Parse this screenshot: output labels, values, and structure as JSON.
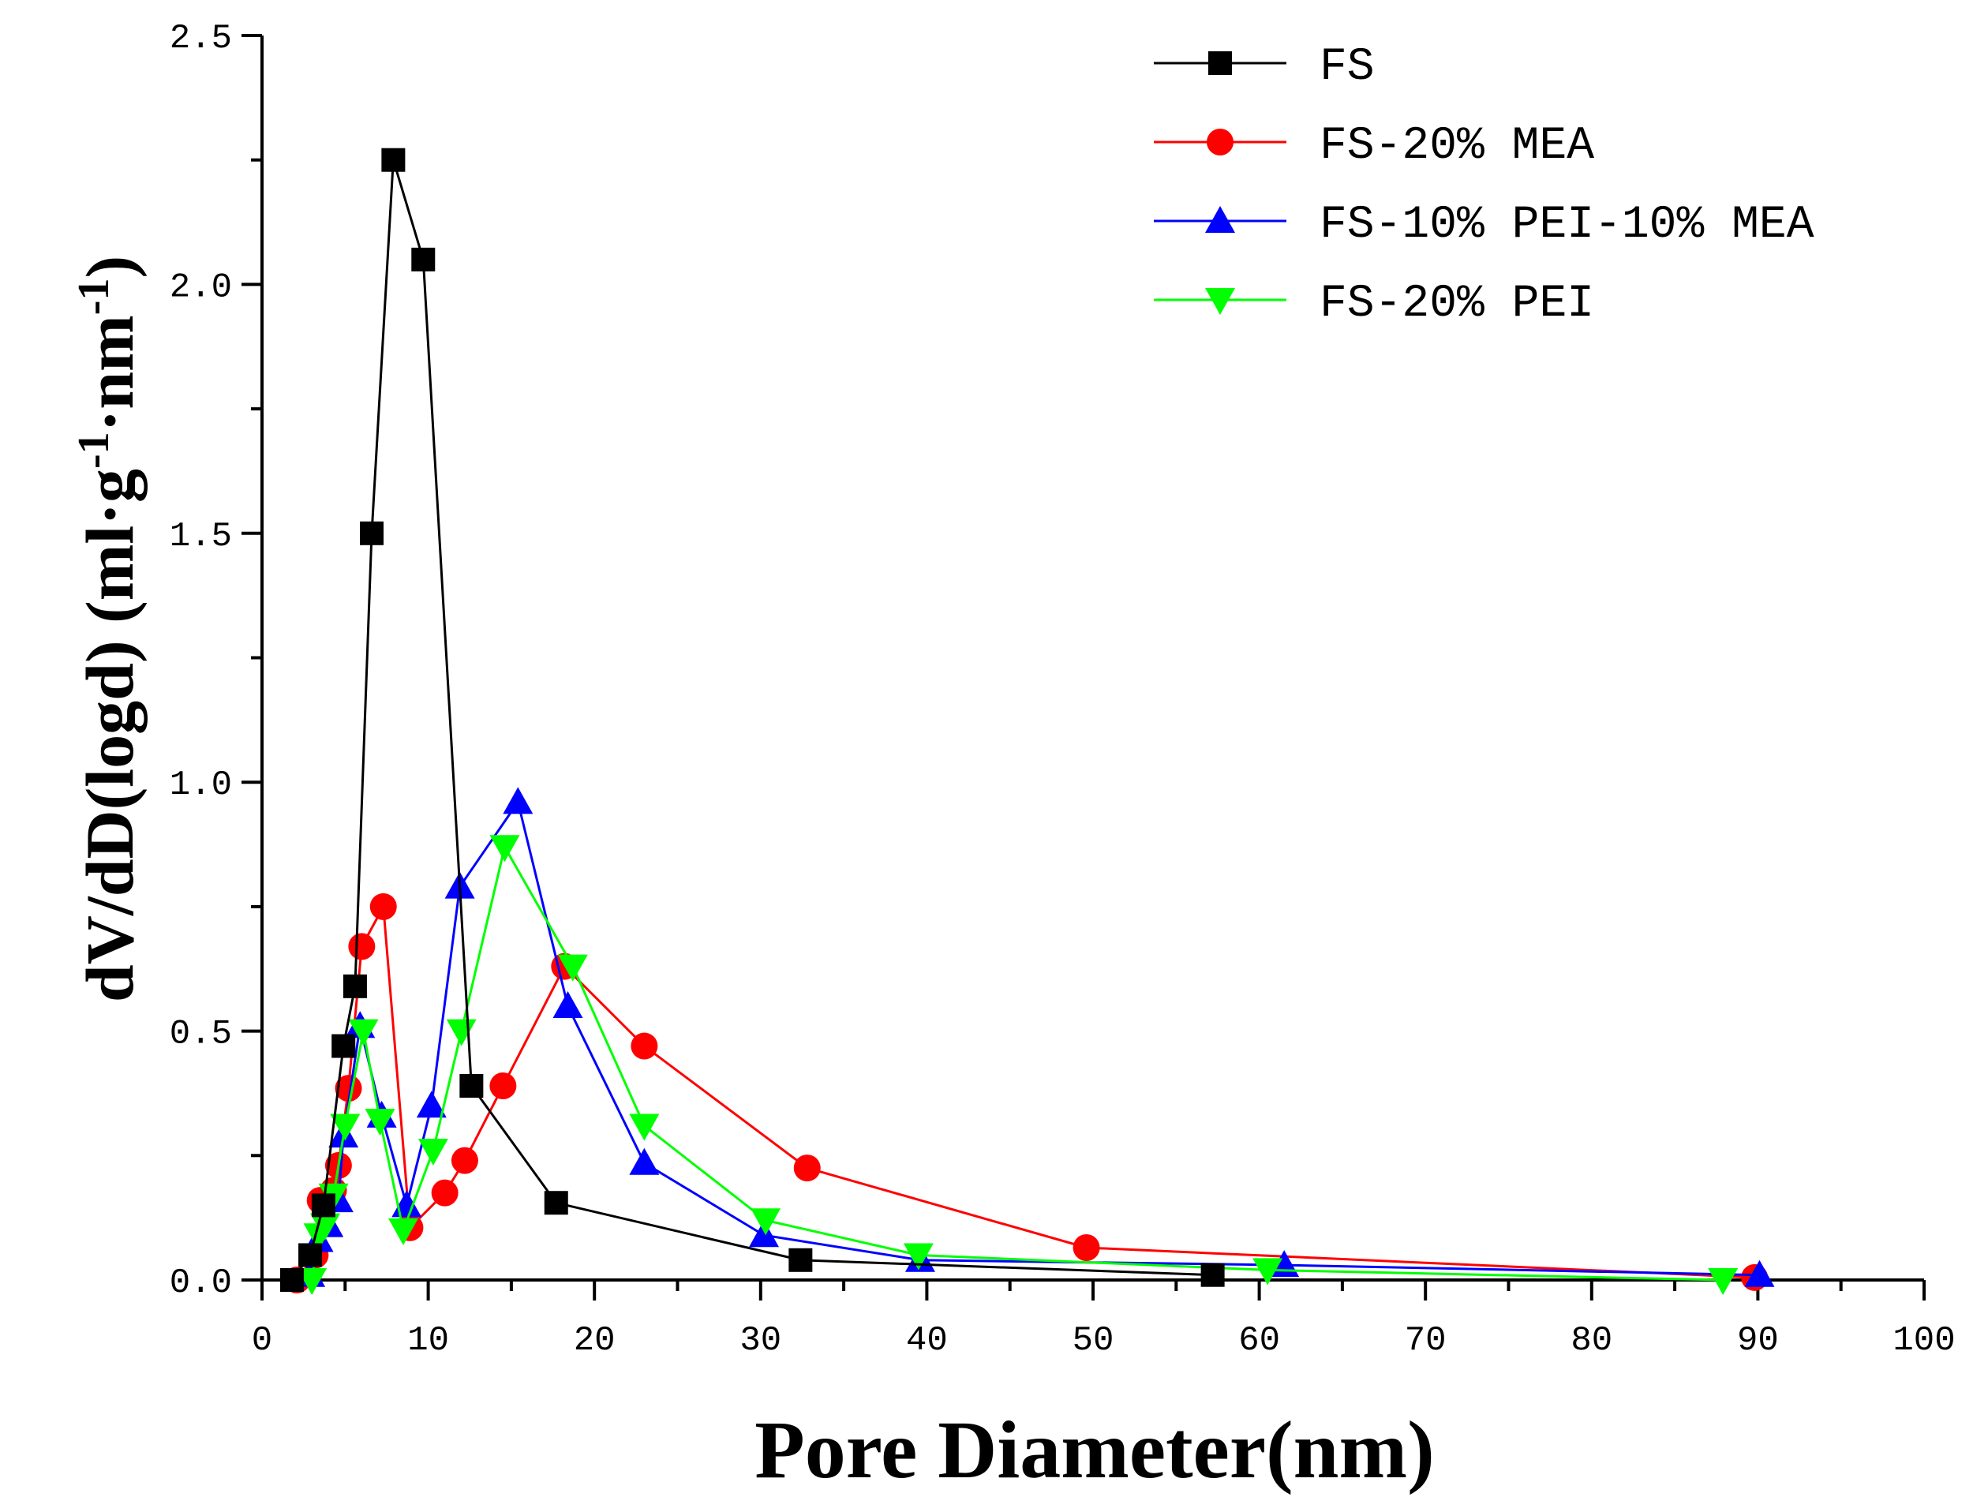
{
  "chart_data": {
    "type": "line",
    "xlabel": "Pore Diameter(nm)",
    "ylabel": "dV/dD(logd)  (ml·g-1·nm-1)",
    "ylabel_parts": {
      "main": "dV/dD(logd)  (ml·g",
      "sup1": "-1",
      "mid": "·nm",
      "sup2": "-1",
      "end": ")"
    },
    "xlim": [
      0,
      100
    ],
    "ylim": [
      0,
      2.5
    ],
    "xticks": [
      0,
      10,
      20,
      30,
      40,
      50,
      60,
      70,
      80,
      90,
      100
    ],
    "xtick_labels": [
      "0",
      "10",
      "20",
      "30",
      "40",
      "50",
      "60",
      "70",
      "80",
      "90",
      "100"
    ],
    "yticks": [
      0,
      0.5,
      1.0,
      1.5,
      2.0,
      2.5
    ],
    "ytick_labels": [
      "0.0",
      "0.5",
      "1.0",
      "1.5",
      "2.0",
      "2.5"
    ],
    "grid": false,
    "legend_position": "top-right",
    "series": [
      {
        "name": "FS",
        "color": "#000000",
        "marker": "square",
        "x": [
          1.8,
          2.9,
          3.7,
          4.9,
          5.6,
          6.6,
          7.9,
          9.7,
          12.6,
          17.7,
          32.4,
          57.2
        ],
        "y": [
          0.0,
          0.05,
          0.15,
          0.47,
          0.59,
          1.5,
          2.25,
          2.05,
          0.39,
          0.155,
          0.04,
          0.01
        ]
      },
      {
        "name": "FS-20% MEA",
        "color": "#ff0000",
        "marker": "circle",
        "x": [
          2.1,
          3.2,
          3.5,
          4.3,
          4.6,
          5.2,
          6.0,
          7.3,
          8.9,
          11.0,
          12.2,
          14.5,
          18.2,
          23.0,
          32.8,
          49.6,
          89.8
        ],
        "y": [
          0.0,
          0.05,
          0.16,
          0.18,
          0.23,
          0.385,
          0.67,
          0.75,
          0.105,
          0.175,
          0.24,
          0.39,
          0.63,
          0.47,
          0.225,
          0.065,
          0.005
        ]
      },
      {
        "name": "FS-10% PEI-10% MEA",
        "color": "#0000ff",
        "marker": "triangle-up",
        "x": [
          2.9,
          3.4,
          4.0,
          4.6,
          4.9,
          5.9,
          7.2,
          8.7,
          10.2,
          11.9,
          15.4,
          18.4,
          23.0,
          30.2,
          39.6,
          61.5,
          90.1
        ],
        "y": [
          0.01,
          0.08,
          0.11,
          0.16,
          0.29,
          0.51,
          0.33,
          0.15,
          0.35,
          0.79,
          0.96,
          0.55,
          0.235,
          0.09,
          0.04,
          0.03,
          0.01
        ]
      },
      {
        "name": "FS-20% PEI",
        "color": "#00ff00",
        "marker": "triangle-down",
        "x": [
          3.0,
          3.4,
          3.8,
          4.3,
          5.0,
          6.1,
          7.1,
          8.5,
          10.3,
          12.0,
          14.6,
          18.7,
          23.0,
          30.3,
          39.5,
          60.5,
          87.9
        ],
        "y": [
          0.0,
          0.09,
          0.11,
          0.17,
          0.31,
          0.5,
          0.32,
          0.1,
          0.26,
          0.5,
          0.87,
          0.63,
          0.31,
          0.12,
          0.05,
          0.02,
          0.0
        ]
      }
    ]
  }
}
